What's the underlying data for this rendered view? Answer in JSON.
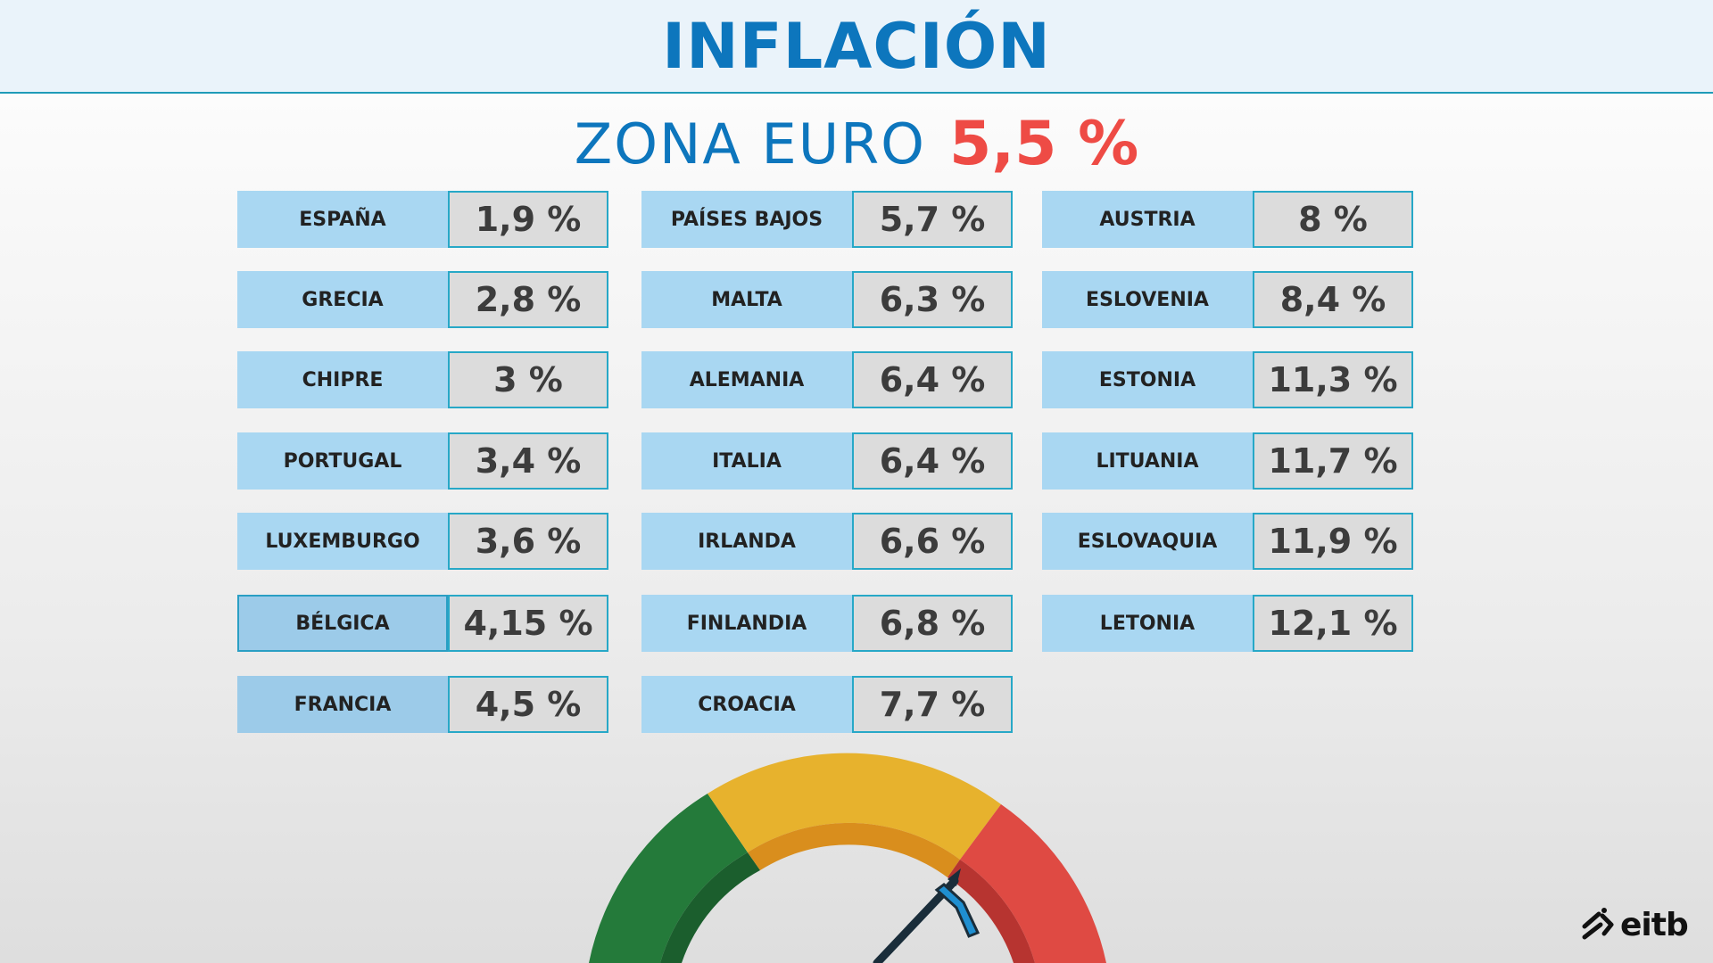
{
  "header": {
    "title": "INFLACIÓN"
  },
  "subtitle": {
    "label": "ZONA EURO",
    "value": "5,5 %"
  },
  "columns": [
    {
      "rows": [
        {
          "country": "ESPAÑA",
          "value": "1,9 %"
        },
        {
          "country": "GRECIA",
          "value": "2,8 %"
        },
        {
          "country": "CHIPRE",
          "value": "3 %"
        },
        {
          "country": "PORTUGAL",
          "value": "3,4 %"
        },
        {
          "country": "LUXEMBURGO",
          "value": "3,6 %"
        },
        {
          "country": "BÉLGICA",
          "value": "4,15 %"
        },
        {
          "country": "FRANCIA",
          "value": "4,5 %"
        }
      ]
    },
    {
      "rows": [
        {
          "country": "PAÍSES BAJOS",
          "value": "5,7 %"
        },
        {
          "country": "MALTA",
          "value": "6,3 %"
        },
        {
          "country": "ALEMANIA",
          "value": "6,4 %"
        },
        {
          "country": "ITALIA",
          "value": "6,4 %"
        },
        {
          "country": "IRLANDA",
          "value": "6,6 %"
        },
        {
          "country": "FINLANDIA",
          "value": "6,8 %"
        },
        {
          "country": "CROACIA",
          "value": "7,7 %"
        }
      ]
    },
    {
      "rows": [
        {
          "country": "AUSTRIA",
          "value": "8 %"
        },
        {
          "country": "ESLOVENIA",
          "value": "8,4 %"
        },
        {
          "country": "ESTONIA",
          "value": "11,3 %"
        },
        {
          "country": "LITUANIA",
          "value": "11,7 %"
        },
        {
          "country": "ESLOVAQUIA",
          "value": "11,9 %"
        },
        {
          "country": "LETONIA",
          "value": "12,1 %"
        }
      ]
    }
  ],
  "gauge": {
    "icon": "speedometer-gauge-icon",
    "colors": {
      "low": "#247a3a",
      "mid": "#e7b22d",
      "high": "#df4a43",
      "needle": "#1a2d3a"
    }
  },
  "logo": {
    "text": "eitb",
    "icon": "eitb-logo-icon"
  },
  "colors": {
    "title": "#0d76bd",
    "highlight": "#ee4b45",
    "country_bg": "#a9d7f2",
    "value_bg": "#dcdcdc",
    "value_border": "#27a8c7"
  }
}
